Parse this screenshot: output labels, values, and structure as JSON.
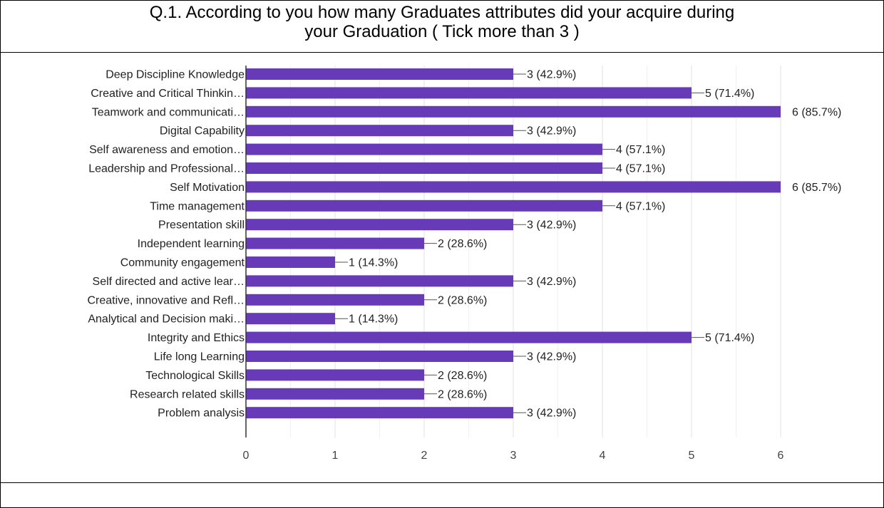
{
  "title": {
    "line1": "Q.1. According to you how many Graduates attributes did your acquire  during",
    "line2": "your  Graduation ( Tick more than 3 )"
  },
  "chart_data": {
    "type": "bar",
    "orientation": "horizontal",
    "categories": [
      "Deep Discipline Knowledge",
      "Creative and Critical Thinkin…",
      "Teamwork and communicati…",
      "Digital Capability",
      "Self awareness and emotion…",
      "Leadership and Professional…",
      "Self Motivation",
      "Time management",
      "Presentation skill",
      "Independent learning",
      "Community engagement",
      "Self directed and active lear…",
      "Creative, innovative and Refl…",
      "Analytical and Decision maki…",
      "Integrity and Ethics",
      "Life long Learning",
      "Technological Skills",
      "Research related skills",
      "Problem analysis"
    ],
    "values": [
      3,
      5,
      6,
      3,
      4,
      4,
      6,
      4,
      3,
      2,
      1,
      3,
      2,
      1,
      5,
      3,
      2,
      2,
      3
    ],
    "data_labels": [
      "3 (42.9%)",
      "5 (71.4%)",
      "6 (85.7%)",
      "3 (42.9%)",
      "4 (57.1%)",
      "4 (57.1%)",
      "6 (85.7%)",
      "4 (57.1%)",
      "3 (42.9%)",
      "2 (28.6%)",
      "1 (14.3%)",
      "3 (42.9%)",
      "2 (28.6%)",
      "1 (14.3%)",
      "5 (71.4%)",
      "3 (42.9%)",
      "2 (28.6%)",
      "2 (28.6%)",
      "3 (42.9%)"
    ],
    "xlim": [
      0,
      6
    ],
    "xticks": [
      "0",
      "1",
      "2",
      "3",
      "4",
      "5",
      "6"
    ],
    "grid": true,
    "bar_color": "#673ab7"
  }
}
